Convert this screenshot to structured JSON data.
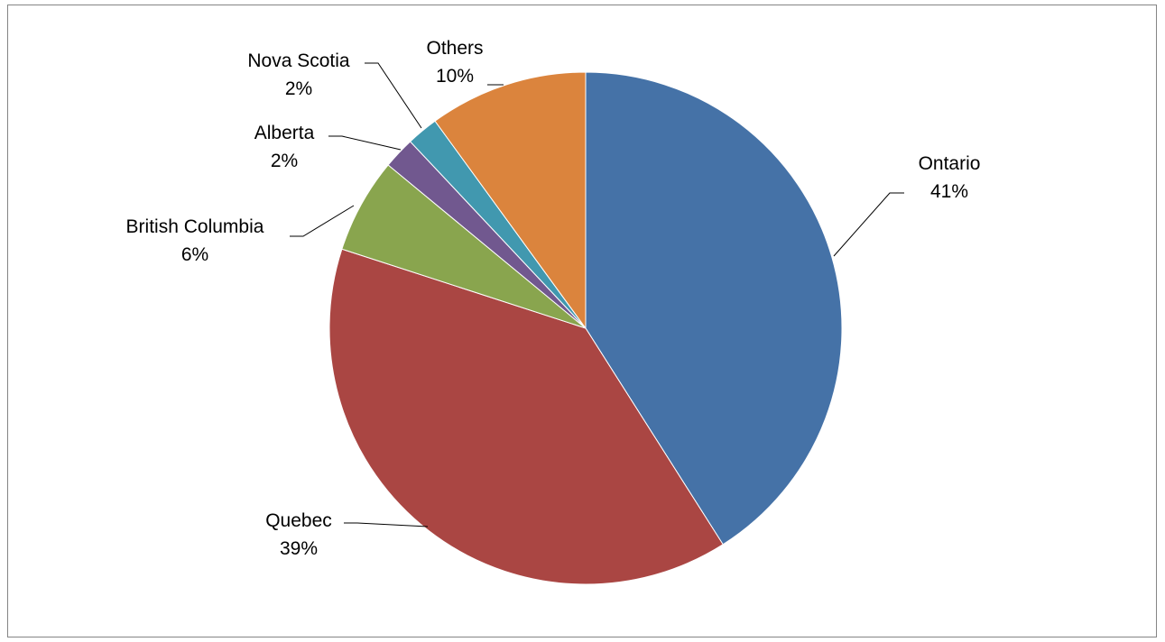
{
  "chart_data": {
    "type": "pie",
    "title": "",
    "start_angle_deg": 0,
    "direction": "clockwise",
    "legend": "none",
    "slices": [
      {
        "name": "Ontario",
        "value": 41,
        "label": "41%",
        "color": "#4572A7"
      },
      {
        "name": "Quebec",
        "value": 39,
        "label": "39%",
        "color": "#AA4643"
      },
      {
        "name": "British Columbia",
        "value": 6,
        "label": "6%",
        "color": "#89A54E"
      },
      {
        "name": "Alberta",
        "value": 2,
        "label": "2%",
        "color": "#71588F"
      },
      {
        "name": "Nova  Scotia",
        "value": 2,
        "label": "2%",
        "color": "#4198AF"
      },
      {
        "name": "Others",
        "value": 10,
        "label": "10%",
        "color": "#DB843D"
      }
    ]
  }
}
